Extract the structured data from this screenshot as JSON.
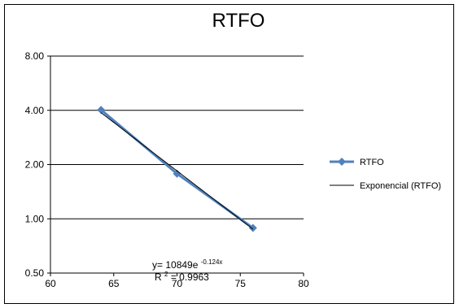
{
  "chart_data": {
    "type": "line",
    "title": "RTFO",
    "xlabel": "",
    "ylabel": "",
    "xlim": [
      60,
      80
    ],
    "ylim": [
      0.5,
      8.0
    ],
    "y_scale": "log2",
    "x_ticks": [
      "60",
      "65",
      "70",
      "75",
      "80"
    ],
    "y_ticks": [
      "8.00",
      "4.00",
      "2.00",
      "1.00",
      "0.50"
    ],
    "grid": "horizontal",
    "legend_position": "right",
    "colors": {
      "series": "#4F81BD",
      "trendline": "#000000"
    },
    "series": [
      {
        "name": "RTFO",
        "marker": "diamond",
        "x": [
          64,
          70,
          76
        ],
        "y": [
          4.02,
          1.78,
          0.89
        ]
      }
    ],
    "trendline": {
      "name": "Exponencial (RTFO)",
      "type": "exponential",
      "a": 10849,
      "b": -0.124,
      "x_range": [
        64,
        76
      ],
      "equation_prefix": "y= 10849e",
      "equation_exponent": "-0.124x",
      "r2_label": "R",
      "r2_exponent": "2",
      "r2_value": "= 0.9963"
    }
  }
}
